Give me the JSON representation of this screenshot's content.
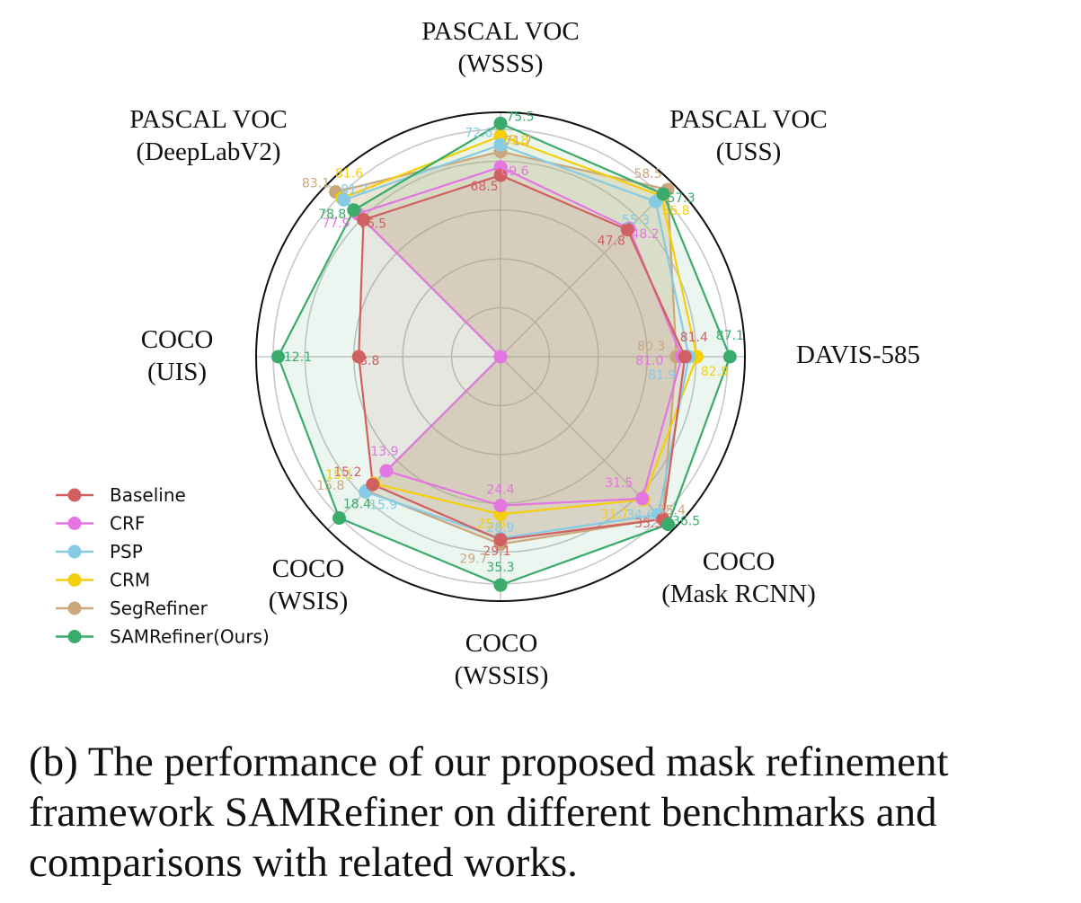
{
  "caption": "(b) The performance of our proposed mask refinement framework SAMRefiner on different benchmarks and comparisons with related works.",
  "chart_data": {
    "type": "radar",
    "axes": [
      {
        "lines": [
          "PASCAL VOC",
          "(WSSS)"
        ]
      },
      {
        "lines": [
          "PASCAL VOC",
          "(USS)"
        ]
      },
      {
        "lines": [
          "DAVIS-585"
        ]
      },
      {
        "lines": [
          "COCO",
          "(Mask RCNN)"
        ]
      },
      {
        "lines": [
          "COCO",
          "(WSSIS)"
        ]
      },
      {
        "lines": [
          "COCO",
          "(WSIS)"
        ]
      },
      {
        "lines": [
          "COCO",
          "(UIS)"
        ]
      },
      {
        "lines": [
          "PASCAL VOC",
          "(DeepLabV2)"
        ]
      }
    ],
    "series": [
      {
        "name": "Baseline",
        "color": "#d16060",
        "values": [
          68.5,
          47.8,
          81.4,
          35.5,
          29.1,
          15.2,
          8.8,
          76.5
        ],
        "labels": [
          "68.5",
          "47.8",
          "81.4",
          "35.5",
          "29.1",
          "15.2",
          "8.8",
          "76.5"
        ]
      },
      {
        "name": "CRF",
        "color": "#e376e0",
        "values": [
          69.6,
          48.2,
          81.0,
          31.5,
          24.4,
          13.9,
          null,
          77.9
        ],
        "labels": [
          "69.6",
          "48.2",
          "81.0",
          "31.5",
          "24.4",
          "13.9",
          "",
          "77.9"
        ]
      },
      {
        "name": "PSP",
        "color": "#86cbe5",
        "values": [
          72.6,
          55.3,
          81.9,
          34.6,
          28.9,
          15.9,
          null,
          81.2
        ],
        "labels": [
          "72.6",
          "55.3",
          "81.9",
          "34.6",
          "28.9",
          "15.9",
          "",
          "81.2"
        ]
      },
      {
        "name": "CRM",
        "color": "#f5cf0b",
        "values": [
          73.8,
          56.8,
          82.9,
          31.7,
          25.6,
          15.1,
          null,
          81.6
        ],
        "labels": [
          "73.8",
          "56.8",
          "82.9",
          "31.7",
          "25.6",
          "15.1",
          "",
          "81.6"
        ]
      },
      {
        "name": "SegRefiner",
        "color": "#cba77e",
        "values": [
          71.7,
          58.5,
          80.3,
          35.4,
          29.7,
          15.8,
          null,
          83.1
        ],
        "labels": [
          "71.7",
          "58.5",
          "80.3",
          "35.4",
          "29.7",
          "15.8",
          "",
          "83.1"
        ]
      },
      {
        "name": "SAMRefiner(Ours)",
        "color": "#3aab6b",
        "values": [
          75.5,
          57.3,
          87.1,
          36.5,
          35.3,
          18.4,
          12.1,
          78.8
        ],
        "labels": [
          "75.5",
          "57.3",
          "87.1",
          "36.5",
          "35.3",
          "18.4",
          "12.1",
          "78.8"
        ]
      }
    ],
    "grid": true,
    "legend": "bottom-left"
  }
}
